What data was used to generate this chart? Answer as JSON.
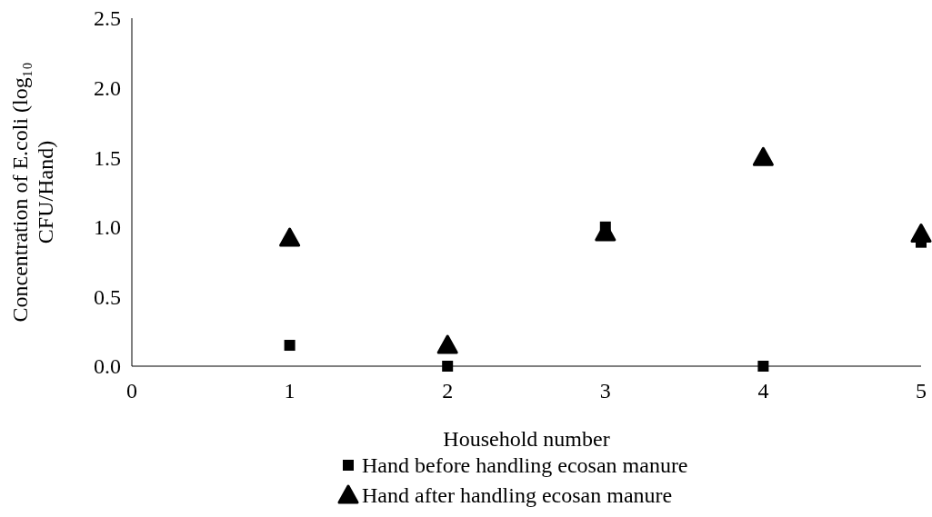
{
  "chart_data": {
    "type": "scatter",
    "xlabel": "Household number",
    "ylabel": "Concentration of E.coli (log₁₀ CFU/Hand)",
    "xlim": [
      0,
      5
    ],
    "xticks": [
      0,
      1,
      2,
      3,
      4,
      5
    ],
    "ylim": [
      0,
      2.5
    ],
    "yticks": [
      {
        "value": 0,
        "label": "0.0"
      },
      {
        "value": 0.5,
        "label": "0.5"
      },
      {
        "value": 1,
        "label": "1.0"
      },
      {
        "value": 1.5,
        "label": "1.5"
      },
      {
        "value": 2,
        "label": "2.0"
      },
      {
        "value": 2.5,
        "label": "2.5"
      }
    ],
    "grid": false,
    "legend": "bottom",
    "x": [
      1,
      2,
      3,
      4,
      5
    ],
    "series": [
      {
        "name": "Hand before handling ecosan manure",
        "color": "#000000",
        "marker": "square",
        "values": [
          0.15,
          0,
          1.0,
          0,
          0.89
        ]
      },
      {
        "name": "Hand after handling ecosan manure",
        "color": "#000000",
        "marker": "triangle",
        "values": [
          0.92,
          0.15,
          0.96,
          1.5,
          0.95
        ]
      }
    ]
  }
}
